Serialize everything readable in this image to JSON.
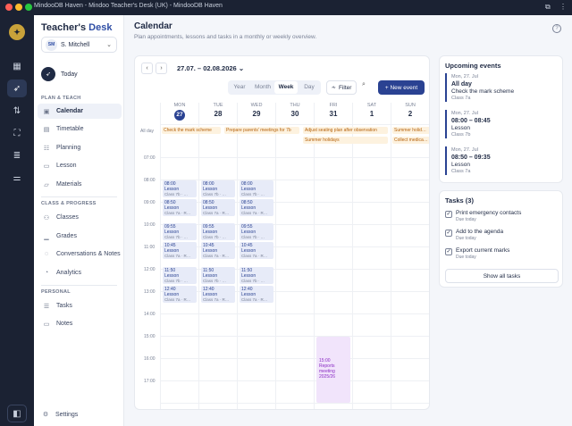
{
  "window": {
    "title": "MindooDB Haven - Mindoo Teacher's Desk (UK) - MindooDB Haven"
  },
  "colors": {
    "accent": "#2a4292",
    "rail_bg": "#1b2233",
    "allday_text": "#b5620c",
    "purple": "#8a2bc4"
  },
  "brand": {
    "part1": "Teacher's ",
    "part2": "Desk"
  },
  "user": {
    "initials": "SM",
    "name": "S. Mitchell"
  },
  "sidebar": {
    "today": "Today",
    "plan_section": "PLAN & TEACH",
    "plan_items": [
      {
        "label": "Calendar",
        "icon": "calendar-icon"
      },
      {
        "label": "Timetable",
        "icon": "timetable-icon"
      },
      {
        "label": "Planning",
        "icon": "planning-icon"
      },
      {
        "label": "Lesson",
        "icon": "lesson-icon"
      },
      {
        "label": "Materials",
        "icon": "folder-icon"
      }
    ],
    "classes_section": "CLASS & PROGRESS",
    "classes_items": [
      {
        "label": "Classes",
        "icon": "classes-icon"
      },
      {
        "label": "Grades",
        "icon": "grades-icon"
      },
      {
        "label": "Conversations & Notes",
        "icon": "conversations-icon"
      },
      {
        "label": "Analytics",
        "icon": "analytics-icon"
      }
    ],
    "personal_section": "PERSONAL",
    "personal_items": [
      {
        "label": "Tasks",
        "icon": "tasks-icon"
      },
      {
        "label": "Notes",
        "icon": "notes-icon"
      }
    ],
    "settings": "Settings"
  },
  "page": {
    "title": "Calendar",
    "subtitle": "Plan appointments, lessons and tasks in a monthly or weekly overview."
  },
  "calendar": {
    "range": "27.07. – 02.08.2026",
    "views": [
      "Year",
      "Month",
      "Week",
      "Day"
    ],
    "active_view": "Week",
    "filter": "Filter",
    "new_event": "+ New event",
    "allday_label": "All day",
    "days": [
      {
        "dow": "MON",
        "num": "27",
        "today": true
      },
      {
        "dow": "TUE",
        "num": "28"
      },
      {
        "dow": "WED",
        "num": "29"
      },
      {
        "dow": "THU",
        "num": "30"
      },
      {
        "dow": "FRI",
        "num": "31"
      },
      {
        "dow": "SAT",
        "num": "1"
      },
      {
        "dow": "SUN",
        "num": "2"
      }
    ],
    "hours": [
      "07:00",
      "08:00",
      "09:00",
      "10:00",
      "11:00",
      "12:00",
      "13:00",
      "14:00",
      "15:00",
      "16:00",
      "17:00"
    ],
    "allday_events": [
      {
        "text": "Check the mark scheme"
      },
      {
        "text": "Prepare parents' meetings for 7b"
      },
      {
        "text": "Adjust seating plan after observation"
      },
      {
        "text": "Summer holidays"
      },
      {
        "text": "Summer holid…"
      },
      {
        "text": "Collect medica…"
      }
    ],
    "lessons": [
      {
        "time": "08:00",
        "name": "Lesson",
        "cls": "Class 7b · …"
      },
      {
        "time": "08:50",
        "name": "Lesson",
        "cls": "Class 7a · R…"
      },
      {
        "time": "09:55",
        "name": "Lesson",
        "cls": "Class 7b · …"
      },
      {
        "time": "10:45",
        "name": "Lesson",
        "cls": "Class 7a · R…"
      },
      {
        "time": "11:50",
        "name": "Lesson",
        "cls": "Class 7b · …"
      },
      {
        "time": "12:40",
        "name": "Lesson",
        "cls": "Class 7a · R…"
      }
    ],
    "reports_event": {
      "time": "15:00",
      "line1": "Reports",
      "line2": "meeting",
      "line3": "2025/26"
    }
  },
  "upcoming": {
    "title": "Upcoming events",
    "events": [
      {
        "date": "Mon, 27. Jul",
        "time": "All day",
        "name": "Check the mark scheme",
        "cls": "Class 7a"
      },
      {
        "date": "Mon, 27. Jul",
        "time": "08:00 – 08:45",
        "name": "Lesson",
        "cls": "Class 7b"
      },
      {
        "date": "Mon, 27. Jul",
        "time": "08:50 – 09:35",
        "name": "Lesson",
        "cls": "Class 7a"
      }
    ]
  },
  "tasks": {
    "title": "Tasks (3)",
    "items": [
      {
        "name": "Print emergency contacts",
        "due": "Due today"
      },
      {
        "name": "Add to the agenda",
        "due": "Due today"
      },
      {
        "name": "Export current marks",
        "due": "Due today"
      }
    ],
    "show_all": "Show all tasks"
  }
}
